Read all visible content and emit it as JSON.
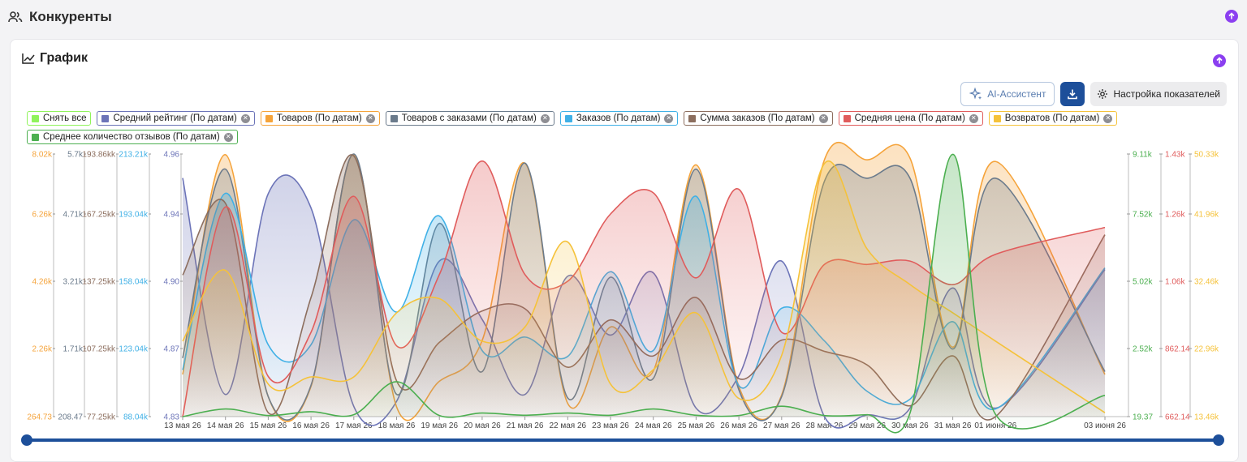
{
  "page": {
    "section_title": "Конкуренты",
    "card_title": "График"
  },
  "toolbar": {
    "ai_label": "AI-Ассистент",
    "settings_label": "Настройка показателей"
  },
  "legend": [
    {
      "label": "Снять все",
      "color": "#90f35b",
      "closable": false
    },
    {
      "label": "Средний рейтинг (По датам)",
      "color": "#6c74b8",
      "closable": true
    },
    {
      "label": "Товаров (По датам)",
      "color": "#f5a33a",
      "closable": true
    },
    {
      "label": "Товаров с заказами (По датам)",
      "color": "#6b7b8c",
      "closable": true
    },
    {
      "label": "Заказов (По датам)",
      "color": "#3fb0e6",
      "closable": true
    },
    {
      "label": "Сумма заказов (По датам)",
      "color": "#8c6e5e",
      "closable": true
    },
    {
      "label": "Средняя цена (По датам)",
      "color": "#e05c5c",
      "closable": true
    },
    {
      "label": "Возвратов (По датам)",
      "color": "#f5c23a",
      "closable": true
    },
    {
      "label": "Среднее количество отзывов (По датам)",
      "color": "#4caf50",
      "closable": true
    }
  ],
  "chart_data": {
    "type": "area",
    "categories": [
      "13 мая 26",
      "14 мая 26",
      "15 мая 26",
      "16 мая 26",
      "17 мая 26",
      "18 мая 26",
      "19 мая 26",
      "20 мая 26",
      "21 мая 26",
      "22 мая 26",
      "23 мая 26",
      "24 мая 26",
      "25 мая 26",
      "26 мая 26",
      "27 мая 26",
      "28 мая 26",
      "29 мая 26",
      "30 мая 26",
      "31 мая 26",
      "01 июня 26",
      "03 июня 26"
    ],
    "axes": {
      "left": [
        {
          "color": "#f5a33a",
          "ticks": [
            "8.02k",
            "6.26k",
            "4.26k",
            "2.26k",
            "264.73"
          ]
        },
        {
          "color": "#6b7b8c",
          "ticks": [
            "5.7k",
            "4.71k",
            "3.21k",
            "1.71k",
            "208.47"
          ]
        },
        {
          "color": "#8c6e5e",
          "ticks": [
            "193.86kk",
            "167.25kk",
            "137.25kk",
            "107.25kk",
            "77.25kk"
          ]
        },
        {
          "color": "#3fb0e6",
          "ticks": [
            "213.21k",
            "193.04k",
            "158.04k",
            "123.04k",
            "88.04k"
          ]
        },
        {
          "color": "#6c74b8",
          "ticks": [
            "4.96",
            "4.94",
            "4.90",
            "4.87",
            "4.83"
          ]
        }
      ],
      "right": [
        {
          "color": "#4caf50",
          "ticks": [
            "9.11k",
            "7.52k",
            "5.02k",
            "2.52k",
            "19.37"
          ]
        },
        {
          "color": "#e05c5c",
          "ticks": [
            "1.43k",
            "1.26k",
            "1.06k",
            "862.14",
            "662.14"
          ]
        },
        {
          "color": "#f5c23a",
          "ticks": [
            "50.33k",
            "41.96k",
            "32.46k",
            "22.96k",
            "13.46k"
          ]
        }
      ]
    },
    "series": [
      {
        "name": "Средний рейтинг (По датам)",
        "color": "#6c74b8",
        "values": [
          4.952,
          4.843,
          4.961,
          4.942,
          4.836,
          4.839,
          4.912,
          4.883,
          4.843,
          4.903,
          4.876,
          4.905,
          4.835,
          4.854,
          4.912,
          4.827,
          4.831,
          4.835,
          4.897,
          4.835,
          4.907
        ]
      },
      {
        "name": "Товаров (По датам)",
        "color": "#f5a33a",
        "values": [
          1500,
          8000,
          850,
          1150,
          8000,
          550,
          1300,
          2500,
          7750,
          650,
          2900,
          1600,
          7700,
          1150,
          900,
          7850,
          7850,
          7900,
          2300,
          7800,
          1500
        ]
      },
      {
        "name": "Товаров с заказами (По датам)",
        "color": "#6b7b8c",
        "values": [
          1500,
          5450,
          650,
          900,
          5700,
          700,
          4500,
          1200,
          5550,
          620,
          3300,
          1050,
          5450,
          800,
          650,
          5250,
          5300,
          5300,
          1700,
          5300,
          1200
        ]
      },
      {
        "name": "Заказов (По датам)",
        "color": "#3fb0e6",
        "values": [
          112000,
          200000,
          125000,
          125000,
          190000,
          142000,
          192000,
          122000,
          129000,
          119000,
          163000,
          122000,
          199000,
          104000,
          144000,
          127000,
          101000,
          97000,
          137000,
          92000,
          165000
        ]
      },
      {
        "name": "Сумма заказов (По датам)",
        "color": "#8c6e5e",
        "values": [
          140000000,
          172000000,
          79000000,
          130000000,
          193000000,
          93000000,
          110000000,
          124000000,
          125000000,
          99000000,
          120000000,
          104000000,
          130000000,
          94000000,
          111000000,
          106000000,
          100000000,
          82000000,
          104000000,
          77000000,
          158000000
        ]
      },
      {
        "name": "Средняя цена (По датам)",
        "color": "#e05c5c",
        "values": [
          662,
          1280,
          780,
          910,
          1310,
          870,
          1080,
          1410,
          1080,
          1060,
          1260,
          1320,
          1070,
          1330,
          910,
          1110,
          1110,
          1120,
          1050,
          1140,
          1220
        ]
      },
      {
        "name": "Возвратов (По датам)",
        "color": "#f5c23a",
        "values": [
          24000,
          34000,
          18000,
          19000,
          19000,
          28000,
          30000,
          24000,
          26000,
          38000,
          18000,
          20000,
          28000,
          16000,
          22000,
          49000,
          37000,
          32000,
          28000,
          24000,
          14000
        ]
      },
      {
        "name": "Среднее количество отзывов (По датам)",
        "color": "#4caf50",
        "values": [
          19.37,
          300,
          60,
          200,
          90,
          1300,
          60,
          150,
          70,
          150,
          70,
          300,
          70,
          60,
          400,
          60,
          90,
          150,
          9100,
          100,
          800
        ]
      }
    ]
  }
}
